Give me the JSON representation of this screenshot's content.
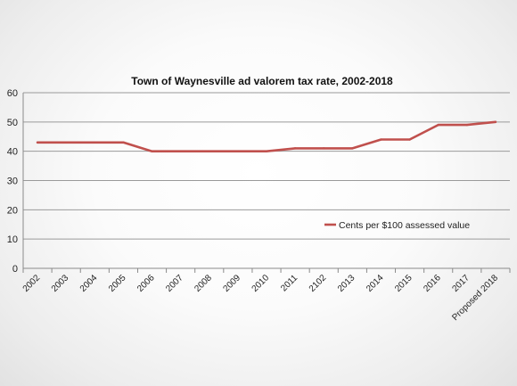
{
  "chart_data": {
    "type": "line",
    "title": "Town of Waynesville ad valorem tax rate, 2002-2018",
    "categories": [
      "2002",
      "2003",
      "2004",
      "2005",
      "2006",
      "2007",
      "2008",
      "2009",
      "2010",
      "2011",
      "2102",
      "2013",
      "2014",
      "2015",
      "2016",
      "2017",
      "Proposed 2018"
    ],
    "series": [
      {
        "name": "Cents per $100 assessed value",
        "values": [
          43,
          43,
          43,
          43,
          40,
          40,
          40,
          40,
          40,
          41,
          41,
          41,
          44,
          44,
          49,
          49,
          50
        ],
        "color": "#c0504d"
      }
    ],
    "ylim": [
      0,
      60
    ],
    "yticks": [
      0,
      10,
      20,
      30,
      40,
      50,
      60
    ],
    "grid": true,
    "legend_position": "right"
  }
}
